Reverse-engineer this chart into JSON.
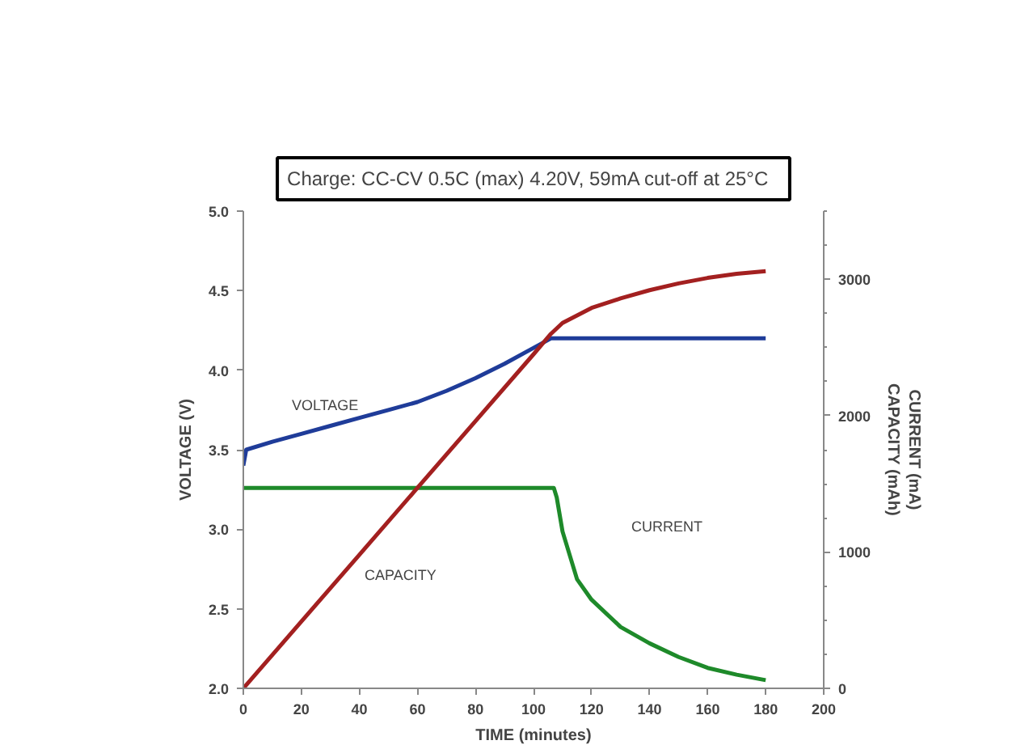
{
  "chart_data": {
    "type": "line",
    "title": "Charge:   CC-CV 0.5C (max) 4.20V, 59mA cut-off at 25°C",
    "xlabel": "TIME (minutes)",
    "ylabel": "VOLTAGE (V)",
    "y2label": "CURRENT (mA)\nCAPACITY (mAh)",
    "xlim": [
      0,
      200
    ],
    "xticks": [
      0,
      20,
      40,
      60,
      80,
      100,
      120,
      140,
      160,
      180,
      200
    ],
    "ylim": [
      2.0,
      5.0
    ],
    "yticks": [
      {
        "value": 2.0,
        "label": "2.0"
      },
      2.5,
      {
        "value": 3.0,
        "label": "3.0"
      },
      3.5,
      {
        "value": 4.0,
        "label": "4.0"
      },
      4.5,
      {
        "value": 5.0,
        "label": "5.0"
      }
    ],
    "y2lim": [
      0,
      3500
    ],
    "y2ticks": [
      0,
      1000,
      2000,
      3000
    ],
    "grid": false,
    "marker": "none",
    "line_style": "solid",
    "series": [
      {
        "color": "#1f3c99",
        "x": [
          0,
          1,
          10,
          20,
          30,
          40,
          50,
          60,
          70,
          80,
          90,
          100,
          106,
          120,
          140,
          160,
          180
        ],
        "values": [
          3.4,
          3.5,
          3.55,
          3.6,
          3.65,
          3.7,
          3.75,
          3.8,
          3.87,
          3.95,
          4.04,
          4.14,
          4.2,
          4.2,
          4.2,
          4.2,
          4.2
        ]
      },
      {
        "color": "#1e8a2a",
        "axis": "y2",
        "x": [
          0,
          20,
          40,
          60,
          80,
          100,
          107,
          108,
          110,
          115,
          120,
          130,
          140,
          150,
          160,
          170,
          180
        ],
        "values": [
          1470,
          1470,
          1470,
          1470,
          1470,
          1470,
          1470,
          1400,
          1150,
          800,
          650,
          450,
          330,
          230,
          150,
          100,
          60
        ]
      },
      {
        "color": "#a32020",
        "axis": "y2",
        "x": [
          0,
          20,
          40,
          60,
          80,
          100,
          106,
          110,
          120,
          130,
          140,
          150,
          160,
          170,
          180
        ],
        "values": [
          0,
          490,
          980,
          1470,
          1960,
          2450,
          2600,
          2680,
          2790,
          2860,
          2920,
          2970,
          3010,
          3040,
          3060
        ]
      }
    ],
    "annotations": [
      "VOLTAGE",
      "CAPACITY",
      "CURRENT"
    ]
  }
}
